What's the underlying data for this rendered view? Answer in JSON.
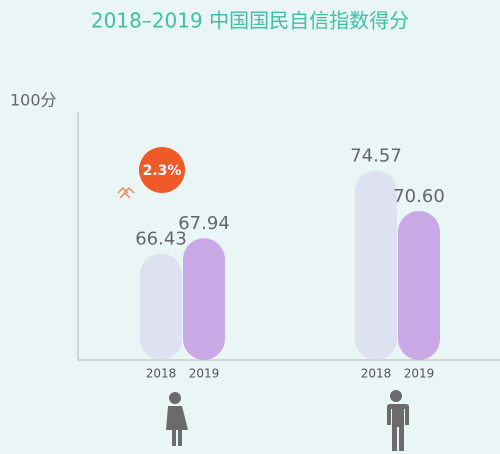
{
  "chart_data": {
    "type": "bar",
    "title": "2018–2019 中国国民自信指数得分",
    "y_label": "100分",
    "categories": [
      null,
      null
    ],
    "series": [
      {
        "name": "2018",
        "color": "#dde1f0",
        "values": [
          66.43,
          74.57
        ],
        "value_labels": [
          "66.43",
          "74.57"
        ]
      },
      {
        "name": "2019",
        "color": "#c9a8e6",
        "values": [
          67.94,
          70.6
        ],
        "value_labels": [
          "67.94",
          "70.60"
        ]
      }
    ],
    "annotation": "2.3%",
    "ylim": [
      56,
      80.5
    ]
  }
}
